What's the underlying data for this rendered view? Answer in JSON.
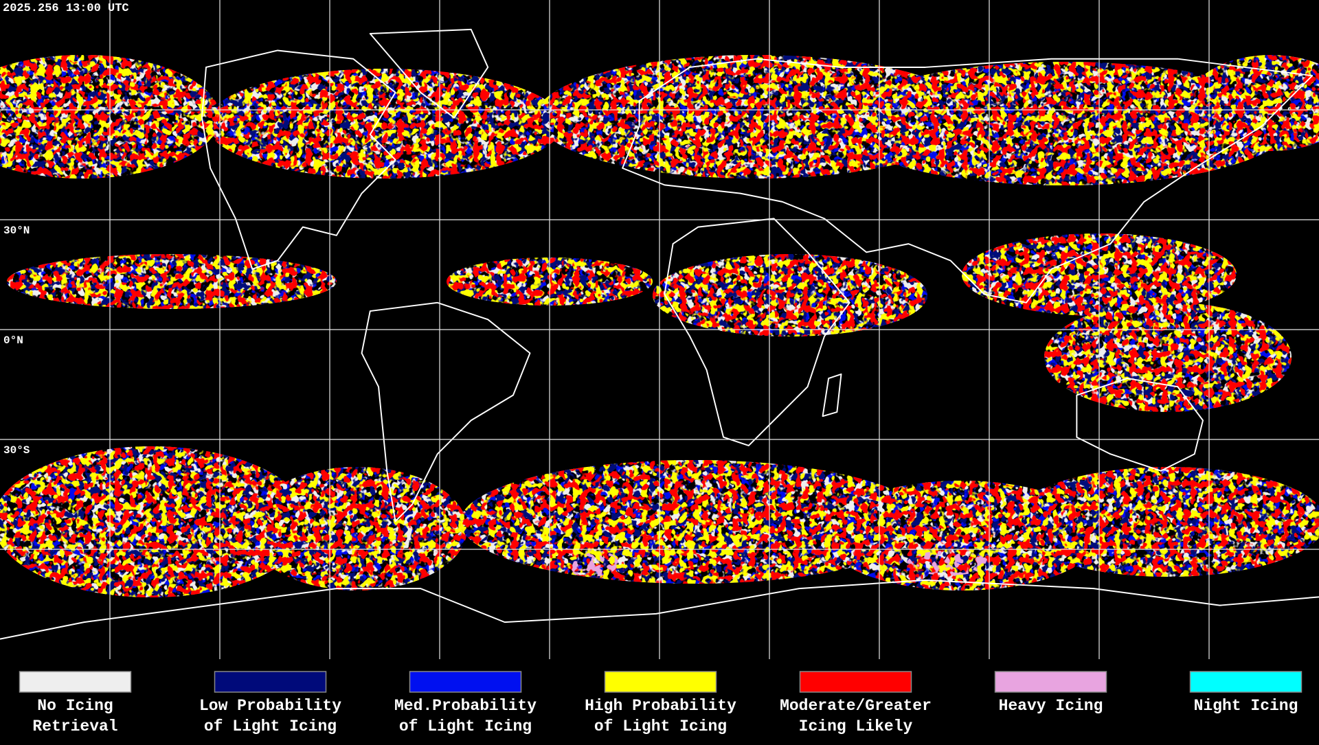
{
  "timestamp": "2025.256 13:00 UTC",
  "latitude_labels": [
    "30°N",
    "0°N",
    "30°S"
  ],
  "legend": [
    {
      "lines": [
        "No Icing",
        "Retrieval"
      ],
      "color": "#eeeeee"
    },
    {
      "lines": [
        "Low Probability",
        "of Light Icing"
      ],
      "color": "#000a7a"
    },
    {
      "lines": [
        "Med.Probability",
        "of Light Icing"
      ],
      "color": "#0010f0"
    },
    {
      "lines": [
        "High Probability",
        "of Light Icing"
      ],
      "color": "#ffff00"
    },
    {
      "lines": [
        "Moderate/Greater",
        "Icing Likely"
      ],
      "color": "#ff0000"
    },
    {
      "lines": [
        "Heavy Icing",
        ""
      ],
      "color": "#e8a4e0"
    },
    {
      "lines": [
        "Night Icing",
        ""
      ],
      "color": "#00ffff"
    }
  ]
}
